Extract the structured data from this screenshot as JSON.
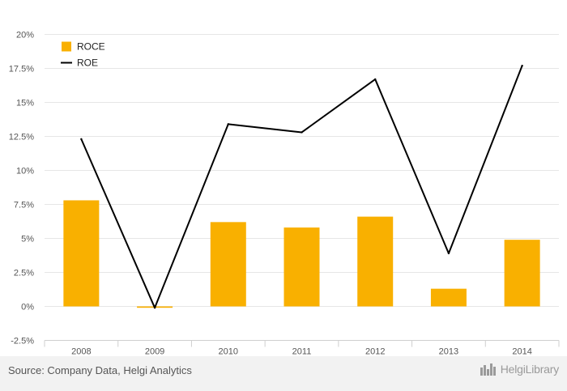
{
  "chart_data": {
    "type": "bar",
    "categories": [
      "2008",
      "2009",
      "2010",
      "2011",
      "2012",
      "2013",
      "2014"
    ],
    "series": [
      {
        "name": "ROCE",
        "type": "bar",
        "color": "#f9b000",
        "values": [
          7.8,
          -0.1,
          6.2,
          5.8,
          6.6,
          1.3,
          4.9
        ]
      },
      {
        "name": "ROE",
        "type": "line",
        "color": "#000000",
        "values": [
          12.3,
          -0.1,
          13.4,
          12.8,
          16.7,
          3.9,
          17.7
        ]
      }
    ],
    "ylim": [
      -2.5,
      20
    ],
    "yticks": [
      -2.5,
      0,
      2.5,
      5,
      7.5,
      10,
      12.5,
      15,
      17.5,
      20
    ],
    "ytick_labels": [
      "-2.5%",
      "0%",
      "2.5%",
      "5%",
      "7.5%",
      "10%",
      "12.5%",
      "15%",
      "17.5%",
      "20%"
    ],
    "grid": true,
    "legend": "top-left"
  },
  "footer": {
    "source": "Source: Company Data, Helgi Analytics",
    "logo_text": "HelgiLibrary",
    "logo_icon": "helgi-city-icon"
  }
}
